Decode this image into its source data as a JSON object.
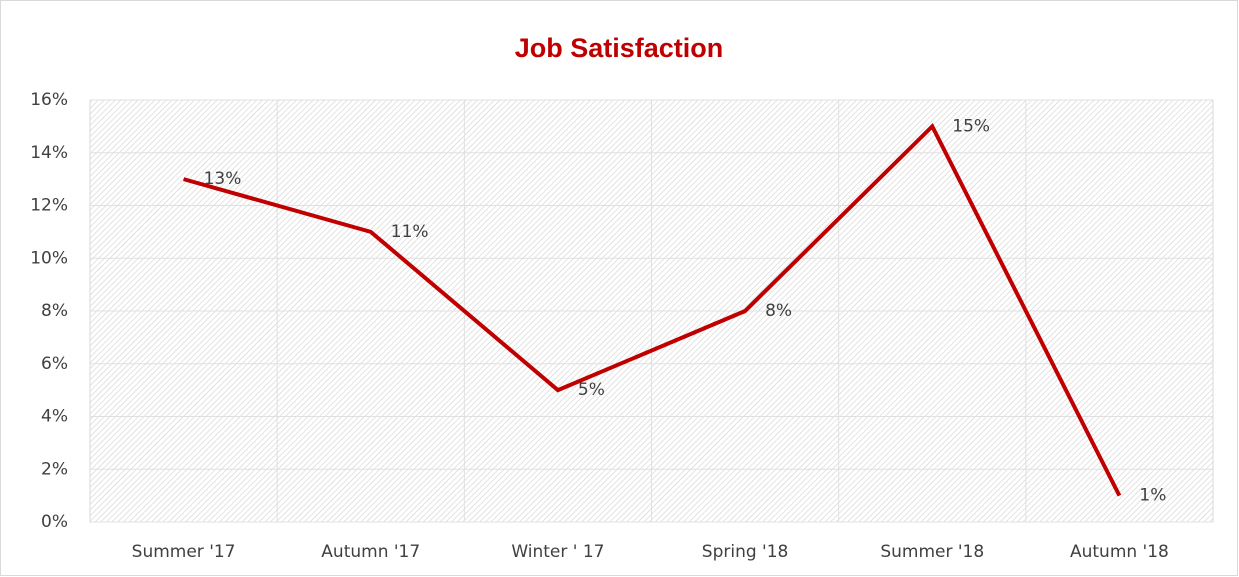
{
  "chart_data": {
    "type": "line",
    "title": "Job Satisfaction",
    "categories": [
      "Summer '17",
      "Autumn '17",
      "Winter ' 17",
      "Spring '18",
      "Summer '18",
      "Autumn '18"
    ],
    "series": [
      {
        "name": "Job Satisfaction",
        "color": "#c00000",
        "values": [
          13,
          11,
          5,
          8,
          15,
          1
        ],
        "value_labels": [
          "13%",
          "11%",
          "5%",
          "8%",
          "15%",
          "1%"
        ]
      }
    ],
    "ylim": [
      0,
      16
    ],
    "yticks": [
      {
        "value": 0,
        "label": "0%"
      },
      {
        "value": 2,
        "label": "2%"
      },
      {
        "value": 4,
        "label": "4%"
      },
      {
        "value": 6,
        "label": "6%"
      },
      {
        "value": 8,
        "label": "8%"
      },
      {
        "value": 10,
        "label": "10%"
      },
      {
        "value": 12,
        "label": "12%"
      },
      {
        "value": 14,
        "label": "14%"
      },
      {
        "value": 16,
        "label": "16%"
      }
    ],
    "grid": true
  }
}
